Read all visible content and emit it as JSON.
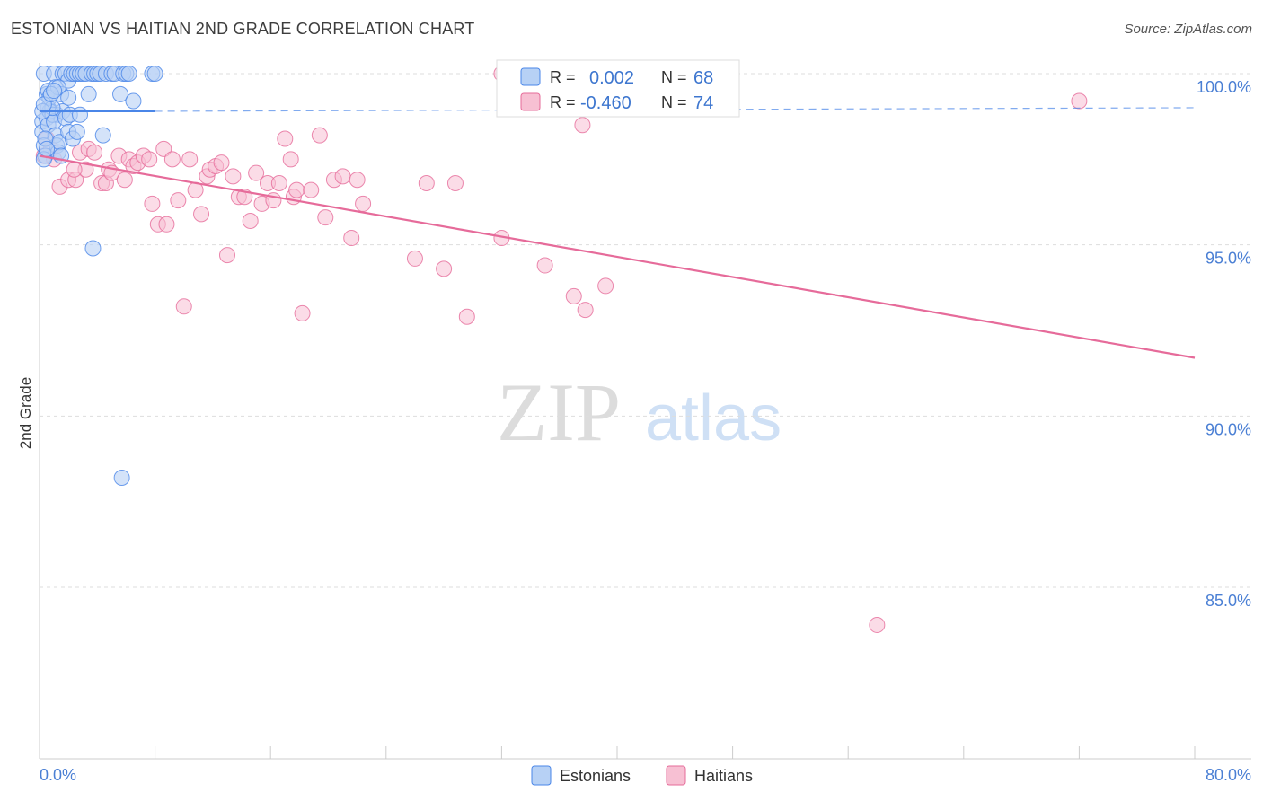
{
  "header": {
    "title": "ESTONIAN VS HAITIAN 2ND GRADE CORRELATION CHART",
    "source": "Source: ZipAtlas.com"
  },
  "colors": {
    "estonians": "#4a86e8",
    "estonians_fill": "#b7d1f5",
    "haitians": "#e66b9a",
    "haitians_fill": "#f7c0d3",
    "axis_label": "#4a7fd4",
    "grid": "#dddddd"
  },
  "chart_data": {
    "type": "scatter",
    "title": "ESTONIAN VS HAITIAN 2ND GRADE CORRELATION CHART",
    "xlabel": "",
    "ylabel": "2nd Grade",
    "xlim": [
      0,
      80
    ],
    "ylim": [
      80.5,
      101
    ],
    "x_tick_labels": {
      "min": "0.0%",
      "max": "80.0%"
    },
    "y_ticks": [
      {
        "value": 100,
        "label": "100.0%"
      },
      {
        "value": 95,
        "label": "95.0%"
      },
      {
        "value": 90,
        "label": "90.0%"
      },
      {
        "value": 85,
        "label": "85.0%"
      }
    ],
    "watermark": {
      "zip": "ZIP",
      "atlas": "atlas"
    },
    "legend": {
      "rows": [
        {
          "series": "Estonians",
          "r_label": "R =",
          "r_value": "0.002",
          "n_label": "N =",
          "n_value": "68"
        },
        {
          "series": "Haitians",
          "r_label": "R =",
          "r_value": "-0.460",
          "n_label": "N =",
          "n_value": "74"
        }
      ]
    },
    "series": [
      {
        "name": "Estonians",
        "trend": {
          "x": [
            0,
            8
          ],
          "y": [
            98.9,
            98.9
          ],
          "dashed_to": 80
        },
        "points": [
          [
            0.3,
            100
          ],
          [
            0.5,
            99.4
          ],
          [
            0.6,
            99.0
          ],
          [
            0.8,
            98.9
          ],
          [
            1.0,
            100
          ],
          [
            1.1,
            99.6
          ],
          [
            1.2,
            98.8
          ],
          [
            1.5,
            99.4
          ],
          [
            1.6,
            100
          ],
          [
            1.8,
            100
          ],
          [
            2.0,
            99.8
          ],
          [
            2.2,
            100
          ],
          [
            2.4,
            100
          ],
          [
            2.6,
            100
          ],
          [
            2.8,
            100
          ],
          [
            3.0,
            100
          ],
          [
            3.2,
            100
          ],
          [
            3.4,
            99.4
          ],
          [
            3.6,
            100
          ],
          [
            3.8,
            100
          ],
          [
            4.0,
            100
          ],
          [
            4.2,
            100
          ],
          [
            4.6,
            100
          ],
          [
            5.0,
            100
          ],
          [
            5.2,
            100
          ],
          [
            5.6,
            99.4
          ],
          [
            5.8,
            100
          ],
          [
            6.0,
            100
          ],
          [
            6.2,
            100
          ],
          [
            6.5,
            99.2
          ],
          [
            7.8,
            100
          ],
          [
            8.0,
            100
          ],
          [
            0.2,
            98.6
          ],
          [
            0.2,
            98.3
          ],
          [
            0.3,
            97.9
          ],
          [
            0.4,
            97.6
          ],
          [
            0.3,
            97.5
          ],
          [
            0.5,
            98.7
          ],
          [
            0.6,
            98.5
          ],
          [
            0.7,
            98.9
          ],
          [
            0.9,
            98.8
          ],
          [
            1.0,
            98.6
          ],
          [
            1.1,
            98.2
          ],
          [
            1.2,
            97.9
          ],
          [
            1.3,
            97.7
          ],
          [
            1.4,
            98.0
          ],
          [
            1.5,
            97.6
          ],
          [
            1.6,
            98.9
          ],
          [
            1.8,
            98.7
          ],
          [
            2.0,
            98.3
          ],
          [
            2.1,
            98.8
          ],
          [
            2.3,
            98.1
          ],
          [
            2.6,
            98.3
          ],
          [
            2.8,
            98.8
          ],
          [
            4.4,
            98.2
          ],
          [
            0.4,
            98.1
          ],
          [
            0.5,
            97.8
          ],
          [
            0.6,
            99.5
          ],
          [
            0.7,
            99.3
          ],
          [
            0.9,
            99.0
          ],
          [
            0.2,
            98.9
          ],
          [
            0.3,
            99.1
          ],
          [
            1.3,
            99.6
          ],
          [
            2.0,
            99.3
          ],
          [
            0.8,
            99.4
          ],
          [
            1.0,
            99.5
          ],
          [
            3.7,
            94.9
          ],
          [
            5.7,
            88.2
          ]
        ]
      },
      {
        "name": "Haitians",
        "trend": {
          "x": [
            0,
            80
          ],
          "y": [
            97.6,
            91.7
          ]
        },
        "points": [
          [
            0.3,
            97.6
          ],
          [
            0.5,
            98.1
          ],
          [
            0.8,
            97.8
          ],
          [
            1.0,
            97.5
          ],
          [
            1.4,
            96.7
          ],
          [
            2.0,
            96.9
          ],
          [
            2.5,
            96.9
          ],
          [
            2.8,
            97.7
          ],
          [
            3.2,
            97.2
          ],
          [
            3.4,
            97.8
          ],
          [
            3.8,
            97.7
          ],
          [
            4.3,
            96.8
          ],
          [
            4.6,
            96.8
          ],
          [
            4.8,
            97.2
          ],
          [
            5.0,
            97.1
          ],
          [
            5.5,
            97.6
          ],
          [
            5.9,
            96.9
          ],
          [
            6.2,
            97.5
          ],
          [
            6.5,
            97.3
          ],
          [
            6.8,
            97.4
          ],
          [
            7.2,
            97.6
          ],
          [
            7.6,
            97.5
          ],
          [
            7.8,
            96.2
          ],
          [
            8.2,
            95.6
          ],
          [
            8.6,
            97.8
          ],
          [
            8.8,
            95.6
          ],
          [
            9.2,
            97.5
          ],
          [
            9.6,
            96.3
          ],
          [
            10.0,
            93.2
          ],
          [
            10.4,
            97.5
          ],
          [
            10.8,
            96.6
          ],
          [
            11.2,
            95.9
          ],
          [
            11.6,
            97.0
          ],
          [
            11.8,
            97.2
          ],
          [
            12.2,
            97.3
          ],
          [
            12.6,
            97.4
          ],
          [
            13.0,
            94.7
          ],
          [
            13.4,
            97.0
          ],
          [
            13.8,
            96.4
          ],
          [
            14.2,
            96.4
          ],
          [
            14.6,
            95.7
          ],
          [
            15.0,
            97.1
          ],
          [
            15.4,
            96.2
          ],
          [
            15.8,
            96.8
          ],
          [
            16.2,
            96.3
          ],
          [
            16.6,
            96.8
          ],
          [
            17.0,
            98.1
          ],
          [
            17.4,
            97.5
          ],
          [
            17.6,
            96.4
          ],
          [
            17.8,
            96.6
          ],
          [
            18.2,
            93.0
          ],
          [
            18.8,
            96.6
          ],
          [
            19.4,
            98.2
          ],
          [
            19.8,
            95.8
          ],
          [
            20.4,
            96.9
          ],
          [
            21.0,
            97.0
          ],
          [
            21.6,
            95.2
          ],
          [
            22.0,
            96.9
          ],
          [
            22.4,
            96.2
          ],
          [
            26.0,
            94.6
          ],
          [
            26.8,
            96.8
          ],
          [
            28.0,
            94.3
          ],
          [
            28.8,
            96.8
          ],
          [
            29.6,
            92.9
          ],
          [
            32.0,
            95.2
          ],
          [
            35.0,
            94.4
          ],
          [
            37.0,
            93.5
          ],
          [
            37.8,
            93.1
          ],
          [
            39.2,
            93.8
          ],
          [
            37.6,
            98.5
          ],
          [
            72.0,
            99.2
          ],
          [
            58.0,
            83.9
          ],
          [
            32.0,
            100
          ],
          [
            2.4,
            97.2
          ]
        ]
      }
    ]
  },
  "bottom_legend": {
    "items": [
      {
        "label": "Estonians"
      },
      {
        "label": "Haitians"
      }
    ]
  }
}
